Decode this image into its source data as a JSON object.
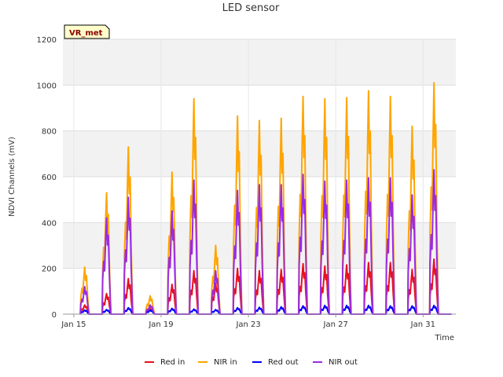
{
  "chart_data": {
    "type": "line",
    "title": "LED sensor",
    "xlabel": "Time",
    "ylabel": "NDVI Channels (mV)",
    "badge": "VR_met",
    "ylim": [
      0,
      1200
    ],
    "xlim": [
      14.5,
      32.5
    ],
    "yticks": [
      0,
      200,
      400,
      600,
      800,
      1000,
      1200
    ],
    "xticks": [
      {
        "value": 15,
        "label": "Jan 15"
      },
      {
        "value": 19,
        "label": "Jan 19"
      },
      {
        "value": 23,
        "label": "Jan 23"
      },
      {
        "value": 27,
        "label": "Jan 27"
      },
      {
        "value": 31,
        "label": "Jan 31"
      }
    ],
    "grid": true,
    "legend_position": "bottom",
    "days": [
      15,
      16,
      17,
      18,
      19,
      20,
      21,
      22,
      23,
      24,
      25,
      26,
      27,
      28,
      29,
      30,
      31,
      32
    ],
    "series": [
      {
        "name": "Red in",
        "color": "#e8121d",
        "peaks": [
          40,
          90,
          155,
          25,
          130,
          190,
          135,
          200,
          190,
          195,
          220,
          210,
          215,
          225,
          225,
          195,
          240,
          0
        ]
      },
      {
        "name": "NIR in",
        "color": "#ffa500",
        "peaks": [
          205,
          530,
          730,
          80,
          620,
          940,
          300,
          865,
          845,
          855,
          950,
          940,
          945,
          975,
          950,
          820,
          1010,
          0
        ]
      },
      {
        "name": "Red out",
        "color": "#0000ff",
        "peaks": [
          18,
          20,
          28,
          18,
          25,
          22,
          20,
          28,
          30,
          32,
          36,
          38,
          38,
          38,
          36,
          36,
          38,
          0
        ]
      },
      {
        "name": "NIR out",
        "color": "#9a2be2",
        "peaks": [
          120,
          420,
          510,
          40,
          450,
          585,
          190,
          540,
          565,
          565,
          610,
          580,
          585,
          595,
          595,
          520,
          630,
          0
        ]
      }
    ]
  }
}
